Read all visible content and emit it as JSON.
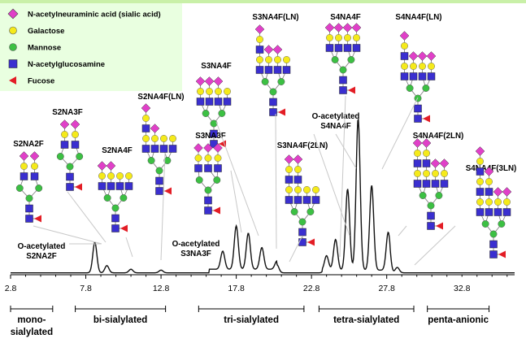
{
  "chart_data": {
    "type": "line",
    "x_ticks": [
      "2.8",
      "7.8",
      "12.8",
      "17.8",
      "22.8",
      "27.8",
      "32.8"
    ],
    "xlim": [
      2.8,
      36.3
    ],
    "legend": [
      {
        "label": "N-acetylneuraminic acid (sialic acid)",
        "shape": "diamond",
        "color": "#e040c8"
      },
      {
        "label": "Galactose",
        "shape": "circle",
        "color": "#f5ea1a"
      },
      {
        "label": "Mannose",
        "shape": "circle",
        "color": "#3cc043"
      },
      {
        "label": "N-acetylglucosamine",
        "shape": "square",
        "color": "#3a2fd0"
      },
      {
        "label": "Fucose",
        "shape": "triangle",
        "color": "#e31d25"
      }
    ],
    "peaks": [
      {
        "x": 8.4,
        "height": 0.17
      },
      {
        "x": 9.2,
        "height": 0.04
      },
      {
        "x": 10.8,
        "height": 0.02
      },
      {
        "x": 12.8,
        "height": 0.015
      },
      {
        "x": 16.9,
        "height": 0.1
      },
      {
        "x": 17.8,
        "height": 0.24
      },
      {
        "x": 18.6,
        "height": 0.2
      },
      {
        "x": 19.5,
        "height": 0.12
      },
      {
        "x": 20.5,
        "height": 0.045
      },
      {
        "x": 23.8,
        "height": 0.08
      },
      {
        "x": 24.4,
        "height": 0.17
      },
      {
        "x": 25.2,
        "height": 0.45
      },
      {
        "x": 25.9,
        "height": 0.84
      },
      {
        "x": 26.8,
        "height": 0.47
      },
      {
        "x": 27.9,
        "height": 0.21
      },
      {
        "x": 28.5,
        "height": 0.03
      }
    ],
    "groups": [
      {
        "label": "mono-sialylated",
        "line1": "mono-",
        "line2": "sialylated",
        "from": 2.8,
        "to": 5.6
      },
      {
        "label": "bi-sialylated",
        "from": 7.1,
        "to": 13.1
      },
      {
        "label": "tri-sialylated",
        "from": 15.3,
        "to": 22.3
      },
      {
        "label": "tetra-sialylated",
        "from": 23.3,
        "to": 29.6
      },
      {
        "label": "penta-anionic",
        "from": 30.5,
        "to": 34.6
      }
    ],
    "annotations": [
      {
        "lines": [
          "S2NA2F"
        ]
      },
      {
        "lines": [
          "S2NA3F"
        ]
      },
      {
        "lines": [
          "S2NA4F"
        ]
      },
      {
        "lines": [
          "S2NA4F(LN)"
        ]
      },
      {
        "lines": [
          "S3NA4F"
        ]
      },
      {
        "lines": [
          "S3NA3F"
        ]
      },
      {
        "lines": [
          "S3NA4F(LN)"
        ]
      },
      {
        "lines": [
          "S3NA4F(2LN)"
        ]
      },
      {
        "lines": [
          "S4NA4F"
        ]
      },
      {
        "lines": [
          "S4NA4F(LN)"
        ]
      },
      {
        "lines": [
          "O-acetylated",
          "S4NA4F"
        ]
      },
      {
        "lines": [
          "S4NA4F(2LN)"
        ]
      },
      {
        "lines": [
          "S4NA4F(3LN)"
        ]
      },
      {
        "lines": [
          "O-acetylated",
          "S2NA2F"
        ]
      },
      {
        "lines": [
          "O-acetylated",
          "S3NA3F"
        ]
      }
    ]
  }
}
